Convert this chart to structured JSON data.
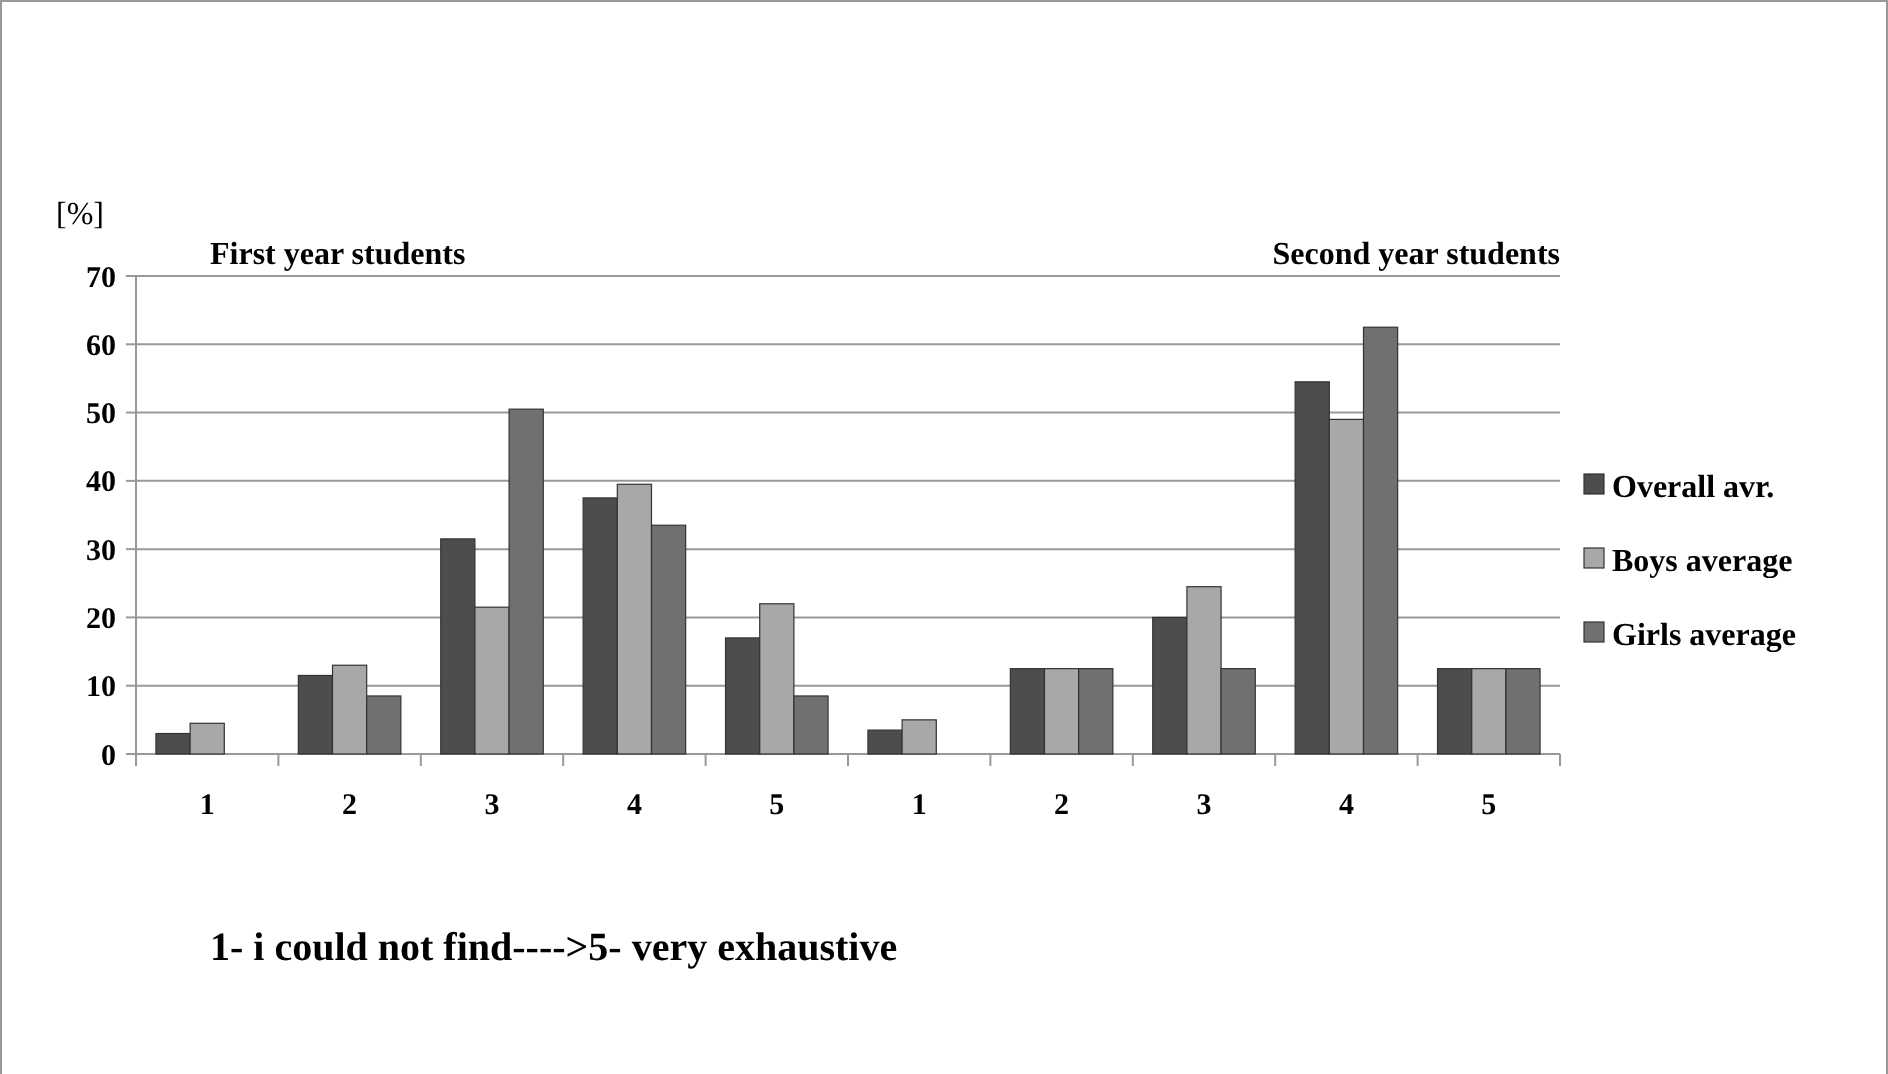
{
  "chart_data": {
    "type": "bar",
    "ylabel": "[%]",
    "categories": [
      "1",
      "2",
      "3",
      "4",
      "5",
      "1",
      "2",
      "3",
      "4",
      "5"
    ],
    "series": [
      {
        "name": "Overall avr.",
        "color": "#4d4d4d",
        "values": [
          3,
          11.5,
          31.5,
          37.5,
          17,
          3.5,
          12.5,
          20,
          54.5,
          12.5
        ]
      },
      {
        "name": "Boys average",
        "color": "#a8a8a8",
        "values": [
          4.5,
          13,
          21.5,
          39.5,
          22,
          5,
          12.5,
          24.5,
          49,
          12.5
        ]
      },
      {
        "name": "Girls average",
        "color": "#707070",
        "values": [
          0,
          8.5,
          50.5,
          33.5,
          8.5,
          0,
          12.5,
          12.5,
          62.5,
          12.5
        ]
      }
    ],
    "ylim": [
      0,
      70
    ],
    "yticks": [
      0,
      10,
      20,
      30,
      40,
      50,
      60,
      70
    ],
    "grid": "y",
    "legend": "right",
    "annotations": [
      "First year students",
      "Second year students",
      "1- i could not find---->5- very exhaustive"
    ]
  }
}
